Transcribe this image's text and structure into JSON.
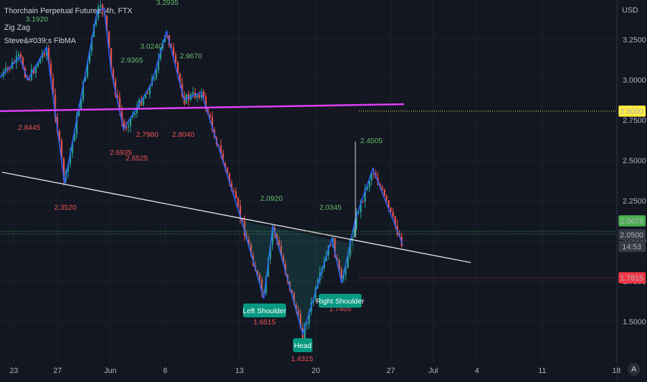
{
  "header": {
    "title": "Thorchain Perpetual Futures, 4h, FTX",
    "indicator_1": "Zig Zag",
    "indicator_2": "Steve&#039;s FibMA"
  },
  "chart_data": {
    "type": "candlestick",
    "currency": "USD",
    "ylim": [
      1.4,
      3.45
    ],
    "y_ticks": [
      "3.2500",
      "3.0000",
      "2.7500",
      "2.5000",
      "2.2500",
      "2.0000",
      "1.7500",
      "1.5000"
    ],
    "x_ticks": [
      "23",
      "27",
      "Jun",
      "6",
      "13",
      "20",
      "27",
      "Jul",
      "4",
      "11",
      "18"
    ],
    "price_labels": [
      {
        "value": "2.8000",
        "color": "#ffeb3b",
        "text_color": "#131722"
      },
      {
        "value": "2.0675",
        "color": "#4caf50",
        "text_color": "#ffffff"
      },
      {
        "value": "2.0500",
        "color": "#363a45",
        "text_color": "#ffffff"
      },
      {
        "value": "14:53",
        "color": "#363a45",
        "text_color": "#ffffff"
      },
      {
        "value": "1.7815",
        "color": "#f23645",
        "text_color": "#ffffff"
      }
    ],
    "zigzag_labels": [
      {
        "text": "3.1920",
        "type": "high"
      },
      {
        "text": "3.2935",
        "type": "high"
      },
      {
        "text": "3.0240",
        "type": "high"
      },
      {
        "text": "2.9365",
        "type": "high"
      },
      {
        "text": "2.9670",
        "type": "high"
      },
      {
        "text": "2.8445",
        "type": "low"
      },
      {
        "text": "2.6935",
        "type": "low"
      },
      {
        "text": "2.6525",
        "type": "low"
      },
      {
        "text": "2.7980",
        "type": "low"
      },
      {
        "text": "2.8040",
        "type": "low"
      },
      {
        "text": "2.3520",
        "type": "low"
      },
      {
        "text": "2.0920",
        "type": "high"
      },
      {
        "text": "2.0345",
        "type": "high"
      },
      {
        "text": "2.4505",
        "type": "high"
      },
      {
        "text": "1.6515",
        "type": "low"
      },
      {
        "text": "1.7405",
        "type": "low"
      },
      {
        "text": "1.4315",
        "type": "low"
      }
    ],
    "pattern_labels": [
      "Left Shoulder",
      "Head",
      "Right Shoulder"
    ],
    "colors": {
      "up": "#26a69a",
      "down": "#ef5350",
      "zigzag": "#2962ff",
      "fib_ma": "#e040fb",
      "neckline": "#e0e3eb"
    }
  },
  "corner_icon": "A"
}
